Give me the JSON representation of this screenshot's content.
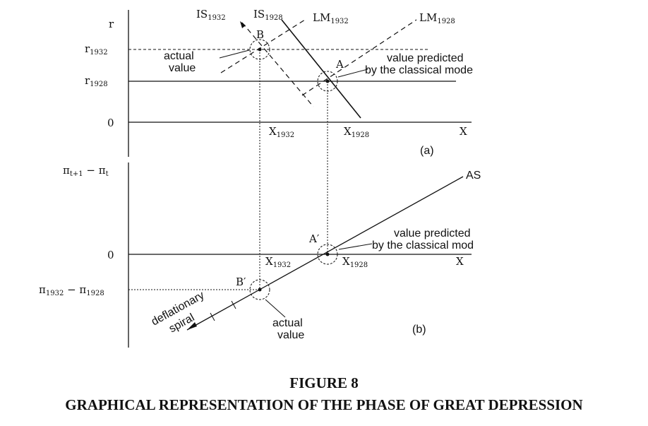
{
  "panel_a": {
    "tag": "(a)",
    "y_axis": "r",
    "x_axis": "X",
    "origin": "0",
    "r1932": {
      "base": "r",
      "sub": "1932"
    },
    "r1928": {
      "base": "r",
      "sub": "1928"
    },
    "x1932": {
      "base": "X",
      "sub": "1932"
    },
    "x1928": {
      "base": "X",
      "sub": "1928"
    },
    "is1932": {
      "base": "IS",
      "sub": "1932"
    },
    "is1928": {
      "base": "IS",
      "sub": "1928"
    },
    "lm1932": {
      "base": "LM",
      "sub": "1932"
    },
    "lm1928": {
      "base": "LM",
      "sub": "1928"
    },
    "point_b": "B",
    "point_a": "A",
    "actual_line1": "actual",
    "actual_line2": "value",
    "predicted_line1": "value predicted",
    "predicted_line2": "by the classical mode"
  },
  "panel_b": {
    "tag": "(b)",
    "y_axis": {
      "a": "π",
      "a_sub": "t+1",
      "mid": " − π",
      "b_sub": "t"
    },
    "x_axis": "X",
    "origin": "0",
    "pi_diff": {
      "a": "π",
      "a_sub": "1932",
      "mid": " − π",
      "b_sub": "1928"
    },
    "x1932": {
      "base": "X",
      "sub": "1932"
    },
    "x1928": {
      "base": "X",
      "sub": "1928"
    },
    "as_label": "AS",
    "point_a": "A′",
    "point_b": "B′",
    "deflationary_line1": "deflationary",
    "deflationary_line2": "spiral",
    "actual_line1": "actual",
    "actual_line2": "value",
    "predicted_line1": "value predicted",
    "predicted_line2": "by the classical mod"
  },
  "caption": {
    "number": "FIGURE 8",
    "title": "GRAPHICAL REPRESENTATION OF THE PHASE OF GREAT DEPRESSION"
  }
}
